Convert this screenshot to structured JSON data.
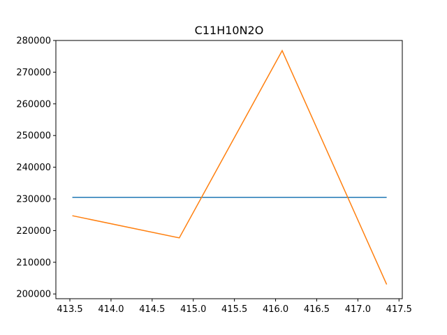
{
  "chart_data": {
    "type": "line",
    "title": "C11H10N2O",
    "xlabel": "",
    "ylabel": "",
    "xlim": [
      413.33,
      417.54
    ],
    "ylim": [
      198500,
      280000
    ],
    "xticks": [
      413.5,
      414.0,
      414.5,
      415.0,
      415.5,
      416.0,
      416.5,
      417.0,
      417.5
    ],
    "xtick_labels": [
      "413.5",
      "414.0",
      "414.5",
      "415.0",
      "415.5",
      "416.0",
      "416.5",
      "417.0",
      "417.5"
    ],
    "yticks": [
      200000,
      210000,
      220000,
      230000,
      240000,
      250000,
      260000,
      270000,
      280000
    ],
    "ytick_labels": [
      "200000",
      "210000",
      "220000",
      "230000",
      "240000",
      "250000",
      "260000",
      "270000",
      "280000"
    ],
    "grid": false,
    "series": [
      {
        "color": "#1f77b4",
        "x": [
          413.53,
          417.35
        ],
        "y": [
          230500,
          230500
        ]
      },
      {
        "color": "#ff7f0e",
        "x": [
          413.53,
          414.83,
          416.08,
          417.35
        ],
        "y": [
          224700,
          217700,
          276800,
          203000
        ]
      }
    ]
  }
}
